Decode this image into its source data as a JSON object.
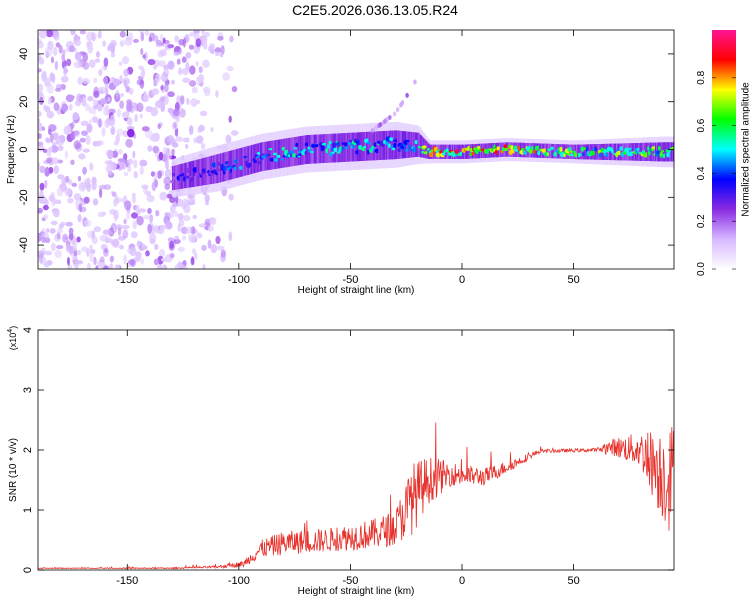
{
  "title": "C2E5.2026.036.13.05.R24",
  "chart_data": [
    {
      "type": "heatmap",
      "title": "C2E5.2026.036.13.05.R24",
      "xlabel": "Height of straight line (km)",
      "ylabel": "Frequency (Hz)",
      "xlim": [
        -190,
        95
      ],
      "ylim": [
        -50,
        50
      ],
      "xticks": [
        -150,
        -100,
        -50,
        0,
        50
      ],
      "yticks": [
        -40,
        -20,
        0,
        20,
        40
      ],
      "colorbar": {
        "label": "Normalized spectral amplitude",
        "range": [
          0,
          1
        ],
        "ticks": [
          "0.0",
          "0.2",
          "0.4",
          "0.6",
          "0.8"
        ],
        "colormap": [
          "#ffffff",
          "#d6b8ff",
          "#8a2be2",
          "#0000ff",
          "#00ffff",
          "#00ff00",
          "#ffff00",
          "#ff0000",
          "#ff1493"
        ]
      },
      "features": {
        "noise_region_x": [
          -190,
          -100
        ],
        "ridge": [
          {
            "x": -130,
            "center": -12,
            "halfwidth": 5,
            "amp": 0.35
          },
          {
            "x": -110,
            "center": -8,
            "halfwidth": 6,
            "amp": 0.45
          },
          {
            "x": -90,
            "center": -3,
            "halfwidth": 6,
            "amp": 0.5
          },
          {
            "x": -70,
            "center": 0,
            "halfwidth": 6,
            "amp": 0.55
          },
          {
            "x": -50,
            "center": 1,
            "halfwidth": 6,
            "amp": 0.55
          },
          {
            "x": -30,
            "center": 2,
            "halfwidth": 6,
            "amp": 0.55
          },
          {
            "x": -20,
            "center": 2,
            "halfwidth": 5,
            "amp": 0.5
          },
          {
            "x": -15,
            "center": -1,
            "halfwidth": 3,
            "amp": 0.85
          },
          {
            "x": 0,
            "center": -1,
            "halfwidth": 3,
            "amp": 0.9
          },
          {
            "x": 20,
            "center": 0,
            "halfwidth": 3,
            "amp": 0.9
          },
          {
            "x": 50,
            "center": -1,
            "halfwidth": 3,
            "amp": 0.7
          },
          {
            "x": 90,
            "center": -1,
            "halfwidth": 4,
            "amp": 0.7
          }
        ],
        "branch": [
          {
            "x": -40,
            "center": 8
          },
          {
            "x": -30,
            "center": 15
          },
          {
            "x": -25,
            "center": 22
          },
          {
            "x": -20,
            "center": 30
          }
        ]
      }
    },
    {
      "type": "line",
      "xlabel": "Height of straight line (km)",
      "ylabel": "SNR (10 * v/v)",
      "yscale_label": "(x10",
      "yscale_exp": "4",
      "xlim": [
        -190,
        95
      ],
      "ylim": [
        0,
        4
      ],
      "xticks": [
        -150,
        -100,
        -50,
        0,
        50
      ],
      "yticks": [
        0,
        1,
        2,
        3,
        4
      ],
      "series": [
        {
          "color": "#e8302a",
          "envelope": [
            {
              "x": -190,
              "y": 0.03,
              "noise": 0.005
            },
            {
              "x": -130,
              "y": 0.03,
              "noise": 0.01
            },
            {
              "x": -110,
              "y": 0.05,
              "noise": 0.02
            },
            {
              "x": -98,
              "y": 0.1,
              "noise": 0.05
            },
            {
              "x": -90,
              "y": 0.35,
              "noise": 0.15
            },
            {
              "x": -80,
              "y": 0.45,
              "noise": 0.2
            },
            {
              "x": -60,
              "y": 0.5,
              "noise": 0.2
            },
            {
              "x": -40,
              "y": 0.6,
              "noise": 0.25
            },
            {
              "x": -30,
              "y": 0.7,
              "noise": 0.3
            },
            {
              "x": -22,
              "y": 1.2,
              "noise": 0.6
            },
            {
              "x": -15,
              "y": 1.5,
              "noise": 0.4
            },
            {
              "x": -5,
              "y": 1.6,
              "noise": 0.2
            },
            {
              "x": 10,
              "y": 1.55,
              "noise": 0.15
            },
            {
              "x": 25,
              "y": 1.8,
              "noise": 0.08
            },
            {
              "x": 35,
              "y": 1.98,
              "noise": 0.03
            },
            {
              "x": 60,
              "y": 2.0,
              "noise": 0.03
            },
            {
              "x": 68,
              "y": 2.05,
              "noise": 0.15
            },
            {
              "x": 80,
              "y": 2.0,
              "noise": 0.3
            },
            {
              "x": 90,
              "y": 1.6,
              "noise": 0.8
            },
            {
              "x": 95,
              "y": 1.5,
              "noise": 1.0
            }
          ]
        }
      ]
    }
  ]
}
